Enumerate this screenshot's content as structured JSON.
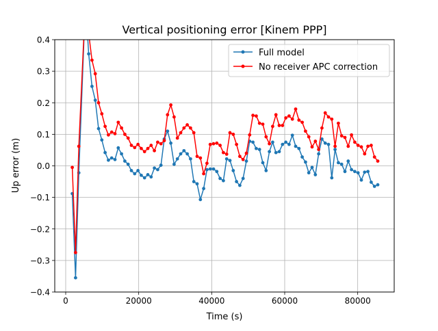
{
  "chart_data": {
    "type": "line",
    "title": "Vertical positioning error [Kinem PPP]",
    "xlabel": "Time (s)",
    "ylabel": "Up error (m)",
    "xlim": [
      -3000,
      90000
    ],
    "ylim": [
      -0.4,
      0.4
    ],
    "x_ticks": [
      0,
      20000,
      40000,
      60000,
      80000
    ],
    "y_ticks": [
      -0.4,
      -0.3,
      -0.2,
      -0.1,
      0.0,
      0.1,
      0.2,
      0.3,
      0.4
    ],
    "x_tick_labels": [
      "0",
      "20000",
      "40000",
      "60000",
      "80000"
    ],
    "y_tick_labels": [
      "−0.4",
      "−0.3",
      "−0.2",
      "−0.1",
      "0.0",
      "0.1",
      "0.2",
      "0.3",
      "0.4"
    ],
    "grid": true,
    "legend_position": "top-right",
    "series": [
      {
        "name": "Full model",
        "color": "#1f77b4",
        "x": [
          1800,
          2700,
          3600,
          5400,
          6300,
          7200,
          8100,
          9000,
          9900,
          10800,
          11700,
          12600,
          13500,
          14400,
          15300,
          16200,
          17100,
          18000,
          18900,
          19800,
          20700,
          21600,
          22500,
          23400,
          24300,
          25200,
          26100,
          27000,
          27900,
          28800,
          29700,
          30600,
          31500,
          32400,
          33300,
          34200,
          35100,
          36000,
          36900,
          37800,
          38700,
          39600,
          40500,
          41400,
          42300,
          43200,
          44100,
          45000,
          45900,
          46800,
          47700,
          48600,
          49500,
          50400,
          51300,
          52200,
          53100,
          54000,
          54900,
          55800,
          56700,
          57600,
          58500,
          59400,
          60300,
          61200,
          62100,
          63000,
          63900,
          64800,
          65700,
          66600,
          67500,
          68400,
          69300,
          70200,
          71100,
          72000,
          72900,
          73800,
          74700,
          75600,
          76500,
          77400,
          78300,
          79200,
          80100,
          81000,
          81900,
          82800,
          83700,
          84600,
          85500
        ],
        "y": [
          -0.088,
          -0.355,
          -0.022,
          0.52,
          0.355,
          0.252,
          0.208,
          0.118,
          0.082,
          0.042,
          0.018,
          0.025,
          0.02,
          0.057,
          0.038,
          0.015,
          0.005,
          -0.015,
          -0.025,
          -0.015,
          -0.03,
          -0.038,
          -0.028,
          -0.035,
          -0.007,
          -0.012,
          0.002,
          0.085,
          0.11,
          0.072,
          0.005,
          0.022,
          0.038,
          0.048,
          0.038,
          0.022,
          -0.05,
          -0.057,
          -0.107,
          -0.072,
          -0.012,
          -0.01,
          -0.01,
          -0.018,
          -0.04,
          -0.047,
          0.022,
          0.017,
          -0.015,
          -0.05,
          -0.062,
          -0.04,
          0.015,
          0.078,
          0.075,
          0.055,
          0.052,
          0.01,
          -0.015,
          0.045,
          0.075,
          0.042,
          0.045,
          0.068,
          0.075,
          0.068,
          0.097,
          0.062,
          0.055,
          0.028,
          0.012,
          -0.022,
          -0.005,
          -0.028,
          0.038,
          0.085,
          0.072,
          0.068,
          -0.038,
          0.052,
          0.01,
          0.005,
          -0.018,
          0.015,
          -0.012,
          -0.018,
          -0.022,
          -0.045,
          -0.02,
          -0.018,
          -0.052,
          -0.065,
          -0.06
        ]
      },
      {
        "name": "No receiver APC correction",
        "color": "#ff0000",
        "x": [
          1800,
          2700,
          3600,
          5400,
          6300,
          7200,
          8100,
          9000,
          9900,
          10800,
          11700,
          12600,
          13500,
          14400,
          15300,
          16200,
          17100,
          18000,
          18900,
          19800,
          20700,
          21600,
          22500,
          23400,
          24300,
          25200,
          26100,
          27000,
          27900,
          28800,
          29700,
          30600,
          31500,
          32400,
          33300,
          34200,
          35100,
          36000,
          36900,
          37800,
          38700,
          39600,
          40500,
          41400,
          42300,
          43200,
          44100,
          45000,
          45900,
          46800,
          47700,
          48600,
          49500,
          50400,
          51300,
          52200,
          53100,
          54000,
          54900,
          55800,
          56700,
          57600,
          58500,
          59400,
          60300,
          61200,
          62100,
          63000,
          63900,
          64800,
          65700,
          66600,
          67500,
          68400,
          69300,
          70200,
          71100,
          72000,
          72900,
          73800,
          74700,
          75600,
          76500,
          77400,
          78300,
          79200,
          80100,
          81000,
          81900,
          82800,
          83700,
          84600,
          85500
        ],
        "y": [
          -0.005,
          -0.275,
          0.062,
          0.52,
          0.42,
          0.335,
          0.292,
          0.2,
          0.165,
          0.125,
          0.098,
          0.107,
          0.102,
          0.138,
          0.12,
          0.1,
          0.088,
          0.065,
          0.058,
          0.068,
          0.055,
          0.045,
          0.055,
          0.065,
          0.048,
          0.075,
          0.07,
          0.08,
          0.162,
          0.193,
          0.155,
          0.088,
          0.105,
          0.12,
          0.13,
          0.12,
          0.105,
          0.03,
          0.025,
          -0.025,
          0.008,
          0.068,
          0.07,
          0.072,
          0.065,
          0.042,
          0.037,
          0.105,
          0.1,
          0.068,
          0.03,
          0.02,
          0.04,
          0.098,
          0.16,
          0.158,
          0.135,
          0.132,
          0.092,
          0.07,
          0.125,
          0.162,
          0.128,
          0.128,
          0.152,
          0.158,
          0.148,
          0.18,
          0.145,
          0.138,
          0.11,
          0.092,
          0.06,
          0.078,
          0.052,
          0.12,
          0.168,
          0.155,
          0.148,
          0.062,
          0.135,
          0.095,
          0.09,
          0.062,
          0.098,
          0.075,
          0.065,
          0.06,
          0.038,
          0.062,
          0.065,
          0.028,
          0.015
        ]
      }
    ]
  }
}
